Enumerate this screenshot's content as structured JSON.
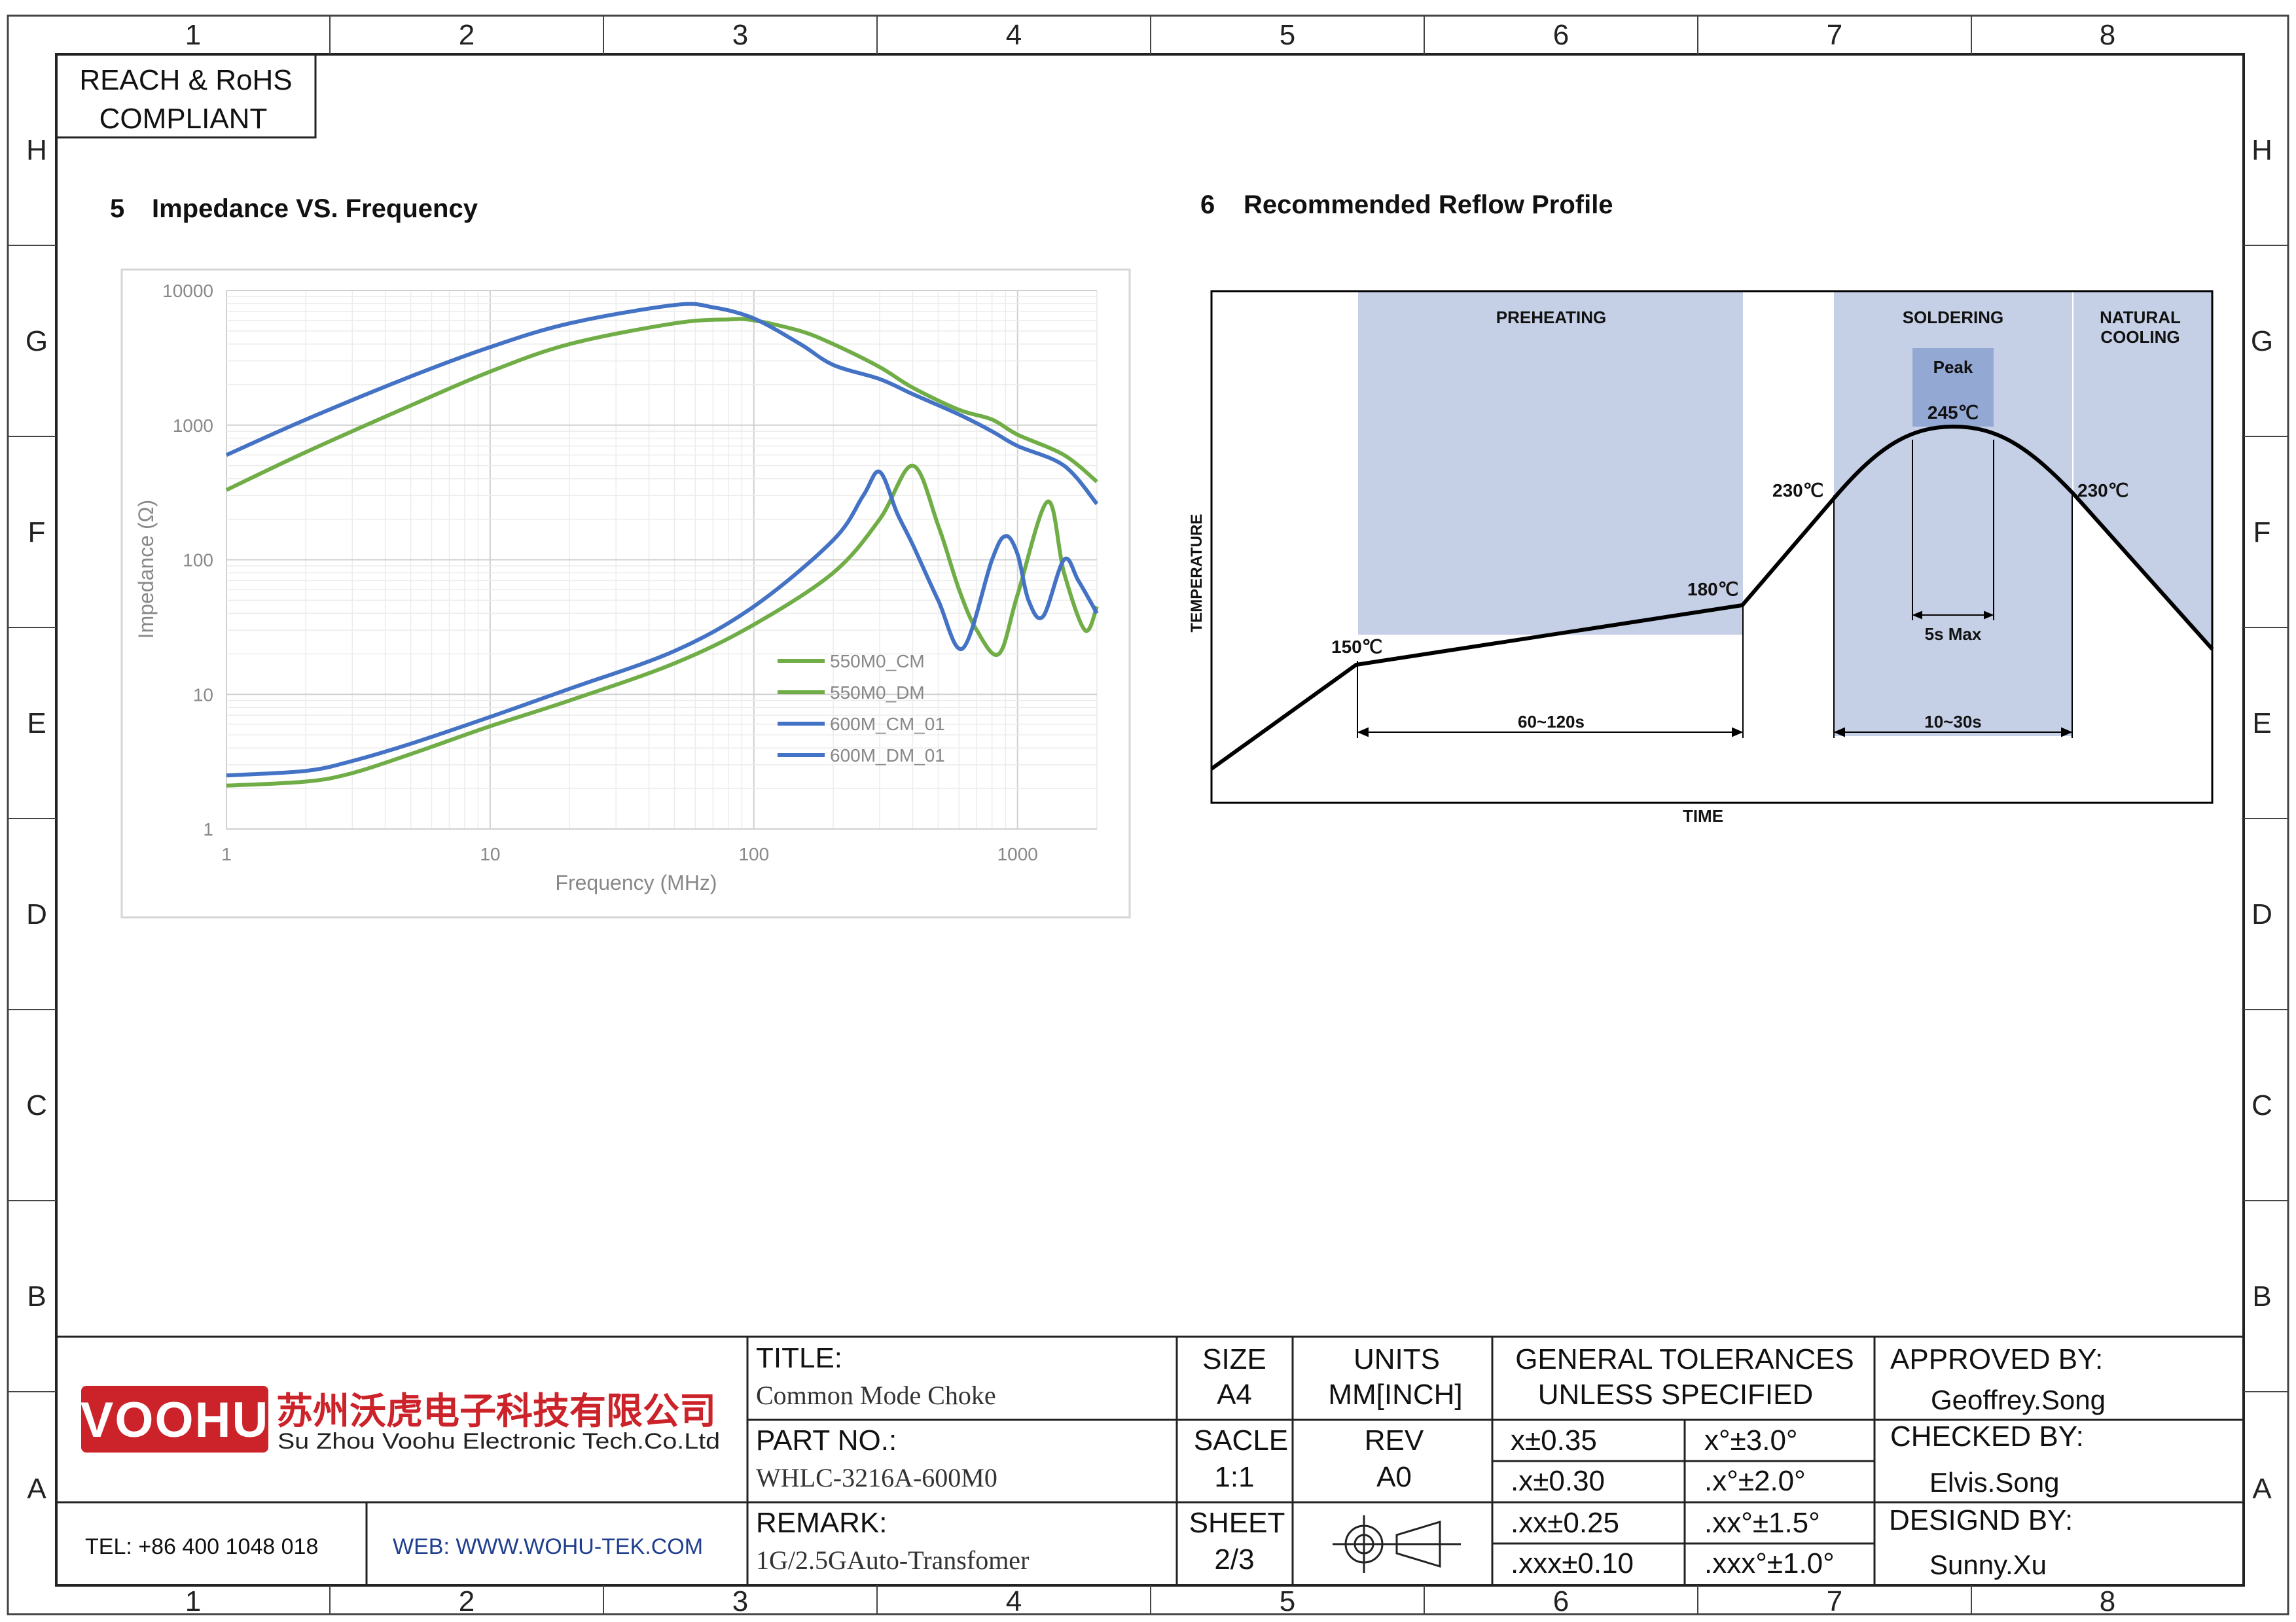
{
  "frame": {
    "columns": [
      "1",
      "2",
      "3",
      "4",
      "5",
      "6",
      "7",
      "8"
    ],
    "rows": [
      "H",
      "G",
      "F",
      "E",
      "D",
      "C",
      "B",
      "A"
    ]
  },
  "compliance": {
    "line1": "REACH & RoHS",
    "line2": "COMPLIANT"
  },
  "sections": {
    "impedance": {
      "number": "5",
      "title": "Impedance VS. Frequency"
    },
    "reflow": {
      "number": "6",
      "title": "Recommended Reflow Profile"
    }
  },
  "chart_data": [
    {
      "type": "line",
      "xlabel": "Frequency (MHz)",
      "ylabel": "Impedance (Ω)",
      "xscale": "log",
      "yscale": "log",
      "xlim": [
        1,
        2000
      ],
      "ylim": [
        1,
        10000
      ],
      "xticks": [
        "1",
        "10",
        "100",
        "1000"
      ],
      "yticks": [
        "1",
        "10",
        "100",
        "1000",
        "10000"
      ],
      "grid": true,
      "legend": "center-right",
      "series": [
        {
          "name": "550M0_CM",
          "color": "#70ad47",
          "x": [
            1,
            2,
            5,
            10,
            20,
            50,
            80,
            100,
            150,
            200,
            300,
            400,
            600,
            800,
            1000,
            1500,
            2000
          ],
          "y": [
            330,
            630,
            1400,
            2500,
            4000,
            5700,
            6100,
            6000,
            5000,
            4000,
            2700,
            1900,
            1300,
            1100,
            850,
            600,
            380
          ]
        },
        {
          "name": "550M0_DM",
          "color": "#70ad47",
          "x": [
            1,
            2,
            3,
            5,
            10,
            20,
            50,
            100,
            200,
            300,
            400,
            500,
            600,
            700,
            850,
            1000,
            1300,
            1500,
            1800,
            2000
          ],
          "y": [
            2.1,
            2.25,
            2.6,
            3.6,
            5.8,
            9,
            17,
            33,
            80,
            200,
            500,
            180,
            60,
            30,
            20,
            55,
            270,
            80,
            30,
            45
          ]
        },
        {
          "name": "600M_CM_01",
          "color": "#4472c4",
          "x": [
            1,
            2,
            5,
            10,
            20,
            50,
            70,
            100,
            150,
            200,
            300,
            400,
            600,
            800,
            1000,
            1500,
            2000
          ],
          "y": [
            600,
            1100,
            2300,
            3800,
            5700,
            7800,
            7500,
            6200,
            4000,
            2800,
            2200,
            1700,
            1200,
            900,
            700,
            500,
            260
          ]
        },
        {
          "name": "600M_DM_01",
          "color": "#4472c4",
          "x": [
            1,
            2,
            3,
            5,
            10,
            20,
            50,
            100,
            200,
            260,
            300,
            350,
            400,
            500,
            620,
            800,
            900,
            1000,
            1100,
            1250,
            1500,
            1700,
            2000
          ],
          "y": [
            2.5,
            2.7,
            3.2,
            4.3,
            6.8,
            11,
            21,
            45,
            140,
            300,
            450,
            220,
            130,
            50,
            22,
            100,
            150,
            110,
            50,
            38,
            100,
            70,
            40
          ]
        }
      ]
    }
  ],
  "reflow": {
    "ylabel": "TEMPERATURE",
    "xlabel": "TIME",
    "zones": {
      "preheating": "PREHEATING",
      "soldering": "SOLDERING",
      "natural_cooling": [
        "NATURAL",
        "COOLING"
      ]
    },
    "peak_label": "Peak",
    "labels": {
      "t150": "150℃",
      "t180": "180℃",
      "t230_rise": "230℃",
      "t230_fall": "230℃",
      "t245": "245℃"
    },
    "durations": {
      "preheat": "60~120s",
      "soldering": "10~30s",
      "peak": "5s Max"
    },
    "colors": {
      "zone": "#c5d0e6",
      "peak_zone": "#94a8d4"
    }
  },
  "titleblock": {
    "company_cn": "苏州沃虎电子科技有限公司",
    "company_en": "Su Zhou Voohu Electronic Tech.Co.Ltd",
    "logo": "VOOHU",
    "logo_color": "#cc2229",
    "tel": "TEL: +86 400 1048 018",
    "web": "WEB: WWW.WOHU-TEK.COM",
    "title_label": "TITLE:",
    "title_value": "Common Mode Choke",
    "part_label": "PART NO.:",
    "part_value": "WHLC-3216A-600M0",
    "remark_label": "REMARK:",
    "remark_value": "1G/2.5GAuto-Transfomer",
    "size_label": "SIZE",
    "size_value": "A4",
    "units_label": "UNITS",
    "units_value": "MM[INCH]",
    "scale_label": "SACLE",
    "scale_value": "1:1",
    "rev_label": "REV",
    "rev_value": "A0",
    "sheet_label": "SHEET",
    "sheet_value": "2/3",
    "tol_title1": "GENERAL TOLERANCES",
    "tol_title2": "UNLESS SPECIFIED",
    "tolerances": [
      [
        "x±0.35",
        "x°±3.0°"
      ],
      [
        ".x±0.30",
        ".x°±2.0°"
      ],
      [
        ".xx±0.25",
        ".xx°±1.5°"
      ],
      [
        ".xxx±0.10",
        ".xxx°±1.0°"
      ]
    ],
    "approved_label": "APPROVED BY:",
    "approved_value": "Geoffrey.Song",
    "checked_label": "CHECKED BY:",
    "checked_value": "Elvis.Song",
    "designed_label": "DESIGND BY:",
    "designed_value": "Sunny.Xu"
  }
}
